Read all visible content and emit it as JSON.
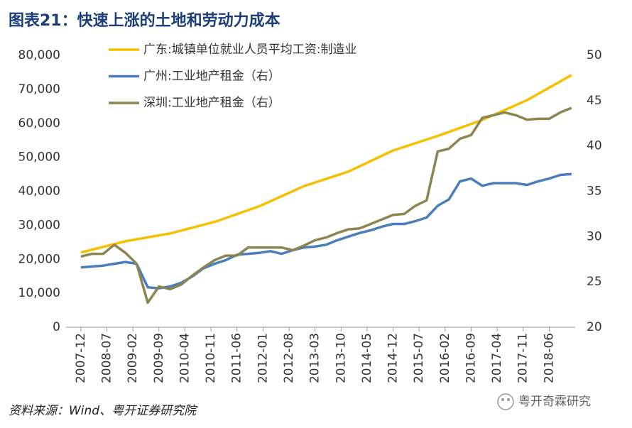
{
  "chart_data": {
    "type": "line",
    "title": "图表21：快速上涨的土地和劳动力成本",
    "source": "资料来源：Wind、粤开证券研究院",
    "watermark": "粤开奇霖研究",
    "xlim": [
      "2007-08",
      "2019-01"
    ],
    "xticks": [
      "2007-12",
      "2008-07",
      "2009-02",
      "2009-09",
      "2010-04",
      "2010-11",
      "2011-06",
      "2012-01",
      "2012-08",
      "2013-03",
      "2013-10",
      "2014-05",
      "2014-12",
      "2015-07",
      "2016-02",
      "2016-09",
      "2017-04",
      "2017-11",
      "2018-06"
    ],
    "ylim": [
      0,
      80000
    ],
    "yticks": [
      0,
      {
        "value": 10000,
        "label": "10,000"
      },
      {
        "value": 20000,
        "label": "20,000"
      },
      {
        "value": 30000,
        "label": "30,000"
      },
      {
        "value": 40000,
        "label": "40,000"
      },
      {
        "value": 50000,
        "label": "50,000"
      },
      {
        "value": 60000,
        "label": "60,000"
      },
      {
        "value": 70000,
        "label": "70,000"
      },
      {
        "value": 80000,
        "label": "80,000"
      }
    ],
    "y2lim": [
      20,
      50
    ],
    "y2ticks": [
      20,
      25,
      30,
      35,
      40,
      45,
      50
    ],
    "legend": "top",
    "series": [
      {
        "name": "广东:城镇单位就业人员平均工资:制造业",
        "color": "#f5c000",
        "x": [
          "2007-12",
          "2008-12",
          "2009-12",
          "2010-12",
          "2011-12",
          "2012-12",
          "2013-12",
          "2014-12",
          "2015-12",
          "2016-12",
          "2017-12",
          "2018-12"
        ],
        "values": [
          22000,
          25300,
          27600,
          31000,
          35600,
          41500,
          45800,
          52000,
          56300,
          61000,
          66800,
          74200
        ]
      },
      {
        "name": "广州:工业地产租金（右）",
        "color": "#4a7ebb",
        "axis": "y2",
        "x": [
          "2007-12",
          "2008-03",
          "2008-06",
          "2008-09",
          "2008-12",
          "2009-03",
          "2009-06",
          "2009-09",
          "2009-12",
          "2010-03",
          "2010-06",
          "2010-09",
          "2010-12",
          "2011-03",
          "2011-06",
          "2011-09",
          "2011-12",
          "2012-03",
          "2012-06",
          "2012-09",
          "2012-12",
          "2013-03",
          "2013-06",
          "2013-09",
          "2013-12",
          "2014-03",
          "2014-06",
          "2014-09",
          "2014-12",
          "2015-03",
          "2015-06",
          "2015-09",
          "2015-12",
          "2016-03",
          "2016-06",
          "2016-09",
          "2016-12",
          "2017-03",
          "2017-06",
          "2017-09",
          "2017-12",
          "2018-03",
          "2018-06",
          "2018-09",
          "2018-12"
        ],
        "values": [
          26.6,
          26.7,
          26.8,
          27.0,
          27.2,
          27.0,
          24.4,
          24.3,
          24.5,
          24.9,
          25.6,
          26.5,
          27.0,
          27.4,
          28.0,
          28.1,
          28.2,
          28.4,
          28.1,
          28.5,
          28.8,
          28.9,
          29.1,
          29.6,
          30.0,
          30.4,
          30.7,
          31.1,
          31.4,
          31.4,
          31.7,
          32.1,
          33.4,
          34.1,
          36.1,
          36.4,
          35.6,
          35.9,
          35.9,
          35.9,
          35.7,
          36.1,
          36.4,
          36.8,
          36.9
        ]
      },
      {
        "name": "深圳:工业地产租金（右）",
        "color": "#8c8552",
        "axis": "y2",
        "x": [
          "2007-12",
          "2008-03",
          "2008-06",
          "2008-09",
          "2008-12",
          "2009-03",
          "2009-06",
          "2009-09",
          "2009-12",
          "2010-03",
          "2010-06",
          "2010-09",
          "2010-12",
          "2011-03",
          "2011-06",
          "2011-09",
          "2011-12",
          "2012-03",
          "2012-06",
          "2012-09",
          "2012-12",
          "2013-03",
          "2013-06",
          "2013-09",
          "2013-12",
          "2014-03",
          "2014-06",
          "2014-09",
          "2014-12",
          "2015-03",
          "2015-06",
          "2015-09",
          "2015-12",
          "2016-03",
          "2016-06",
          "2016-09",
          "2016-12",
          "2017-03",
          "2017-06",
          "2017-09",
          "2017-12",
          "2018-03",
          "2018-06",
          "2018-09",
          "2018-12"
        ],
        "values": [
          27.8,
          28.1,
          28.1,
          29.1,
          28.2,
          27.0,
          22.7,
          24.5,
          24.2,
          24.7,
          25.7,
          26.6,
          27.4,
          27.9,
          27.9,
          28.8,
          28.8,
          28.8,
          28.8,
          28.5,
          29.0,
          29.6,
          29.9,
          30.4,
          30.8,
          30.9,
          31.4,
          31.9,
          32.4,
          32.5,
          33.4,
          34.0,
          39.4,
          39.7,
          40.8,
          41.2,
          43.1,
          43.4,
          43.7,
          43.4,
          42.9,
          43.0,
          43.0,
          43.7,
          44.2
        ]
      }
    ]
  }
}
